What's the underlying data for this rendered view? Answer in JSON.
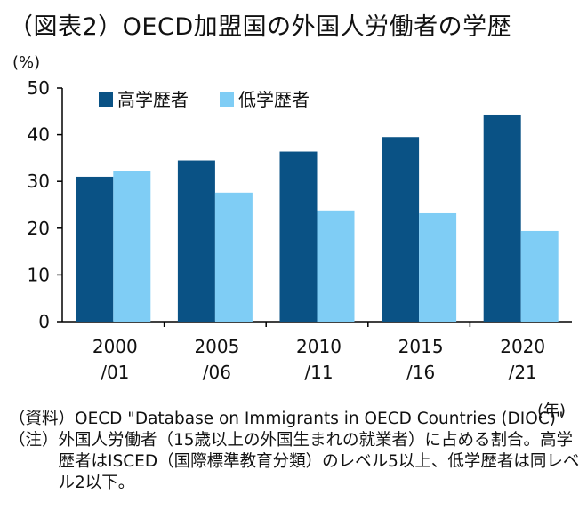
{
  "title": "（図表2）OECD加盟国の外国人労働者の学歴",
  "y_unit": "(%)",
  "x_unit": "(年)",
  "colors": {
    "high": "#0a5285",
    "low": "#7fcdf5",
    "axis": "#000000"
  },
  "chart_data": {
    "type": "bar",
    "categories": [
      [
        "2000",
        "/01"
      ],
      [
        "2005",
        "/06"
      ],
      [
        "2010",
        "/11"
      ],
      [
        "2015",
        "/16"
      ],
      [
        "2020",
        "/21"
      ]
    ],
    "series": [
      {
        "name": "高学歴者",
        "values": [
          31,
          34.5,
          36.4,
          39.5,
          44.3
        ]
      },
      {
        "name": "低学歴者",
        "values": [
          32.3,
          27.6,
          23.8,
          23.2,
          19.4
        ]
      }
    ],
    "ylim": [
      0,
      50
    ],
    "yticks": [
      0,
      10,
      20,
      30,
      40,
      50
    ],
    "grid": false,
    "legend": "top-left"
  },
  "notes": {
    "source_label": "（資料）",
    "source_text": "OECD \"Database on Immigrants in OECD Countries (DIOC)\"",
    "note_label": "（注）",
    "note_text": "外国人労働者（15歳以上の外国生まれの就業者）に占める割合。高学歴者はISCED（国際標準教育分類）のレベル5以上、低学歴者は同レベル2以下。"
  }
}
